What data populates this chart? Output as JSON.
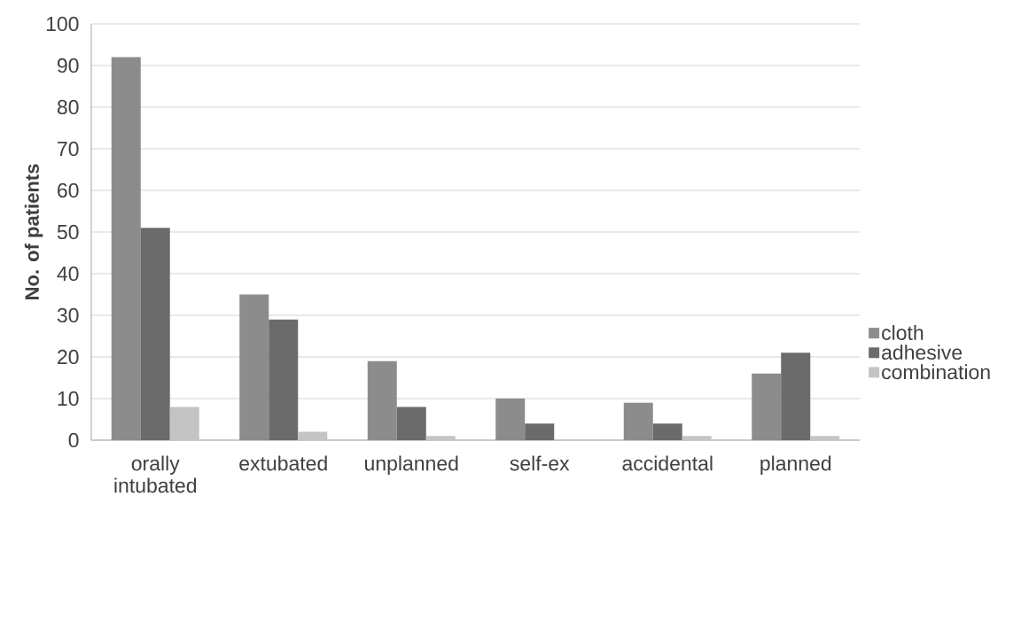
{
  "chart_data": {
    "type": "bar",
    "ylabel": "No. of patients",
    "categories": [
      "orally intubated",
      "extubated",
      "unplanned",
      "self-ex",
      "accidental",
      "planned"
    ],
    "series": [
      {
        "name": "cloth",
        "color": "#8c8c8c",
        "values": [
          92,
          35,
          19,
          10,
          9,
          16
        ]
      },
      {
        "name": "adhesive",
        "color": "#6b6b6b",
        "values": [
          51,
          29,
          8,
          4,
          4,
          21
        ]
      },
      {
        "name": "combination",
        "color": "#c4c4c4",
        "values": [
          8,
          2,
          1,
          0,
          1,
          1
        ]
      }
    ],
    "ylim": [
      0,
      100
    ],
    "yticks": [
      0,
      10,
      20,
      30,
      40,
      50,
      60,
      70,
      80,
      90,
      100
    ],
    "grid": "y",
    "legend": "right"
  }
}
